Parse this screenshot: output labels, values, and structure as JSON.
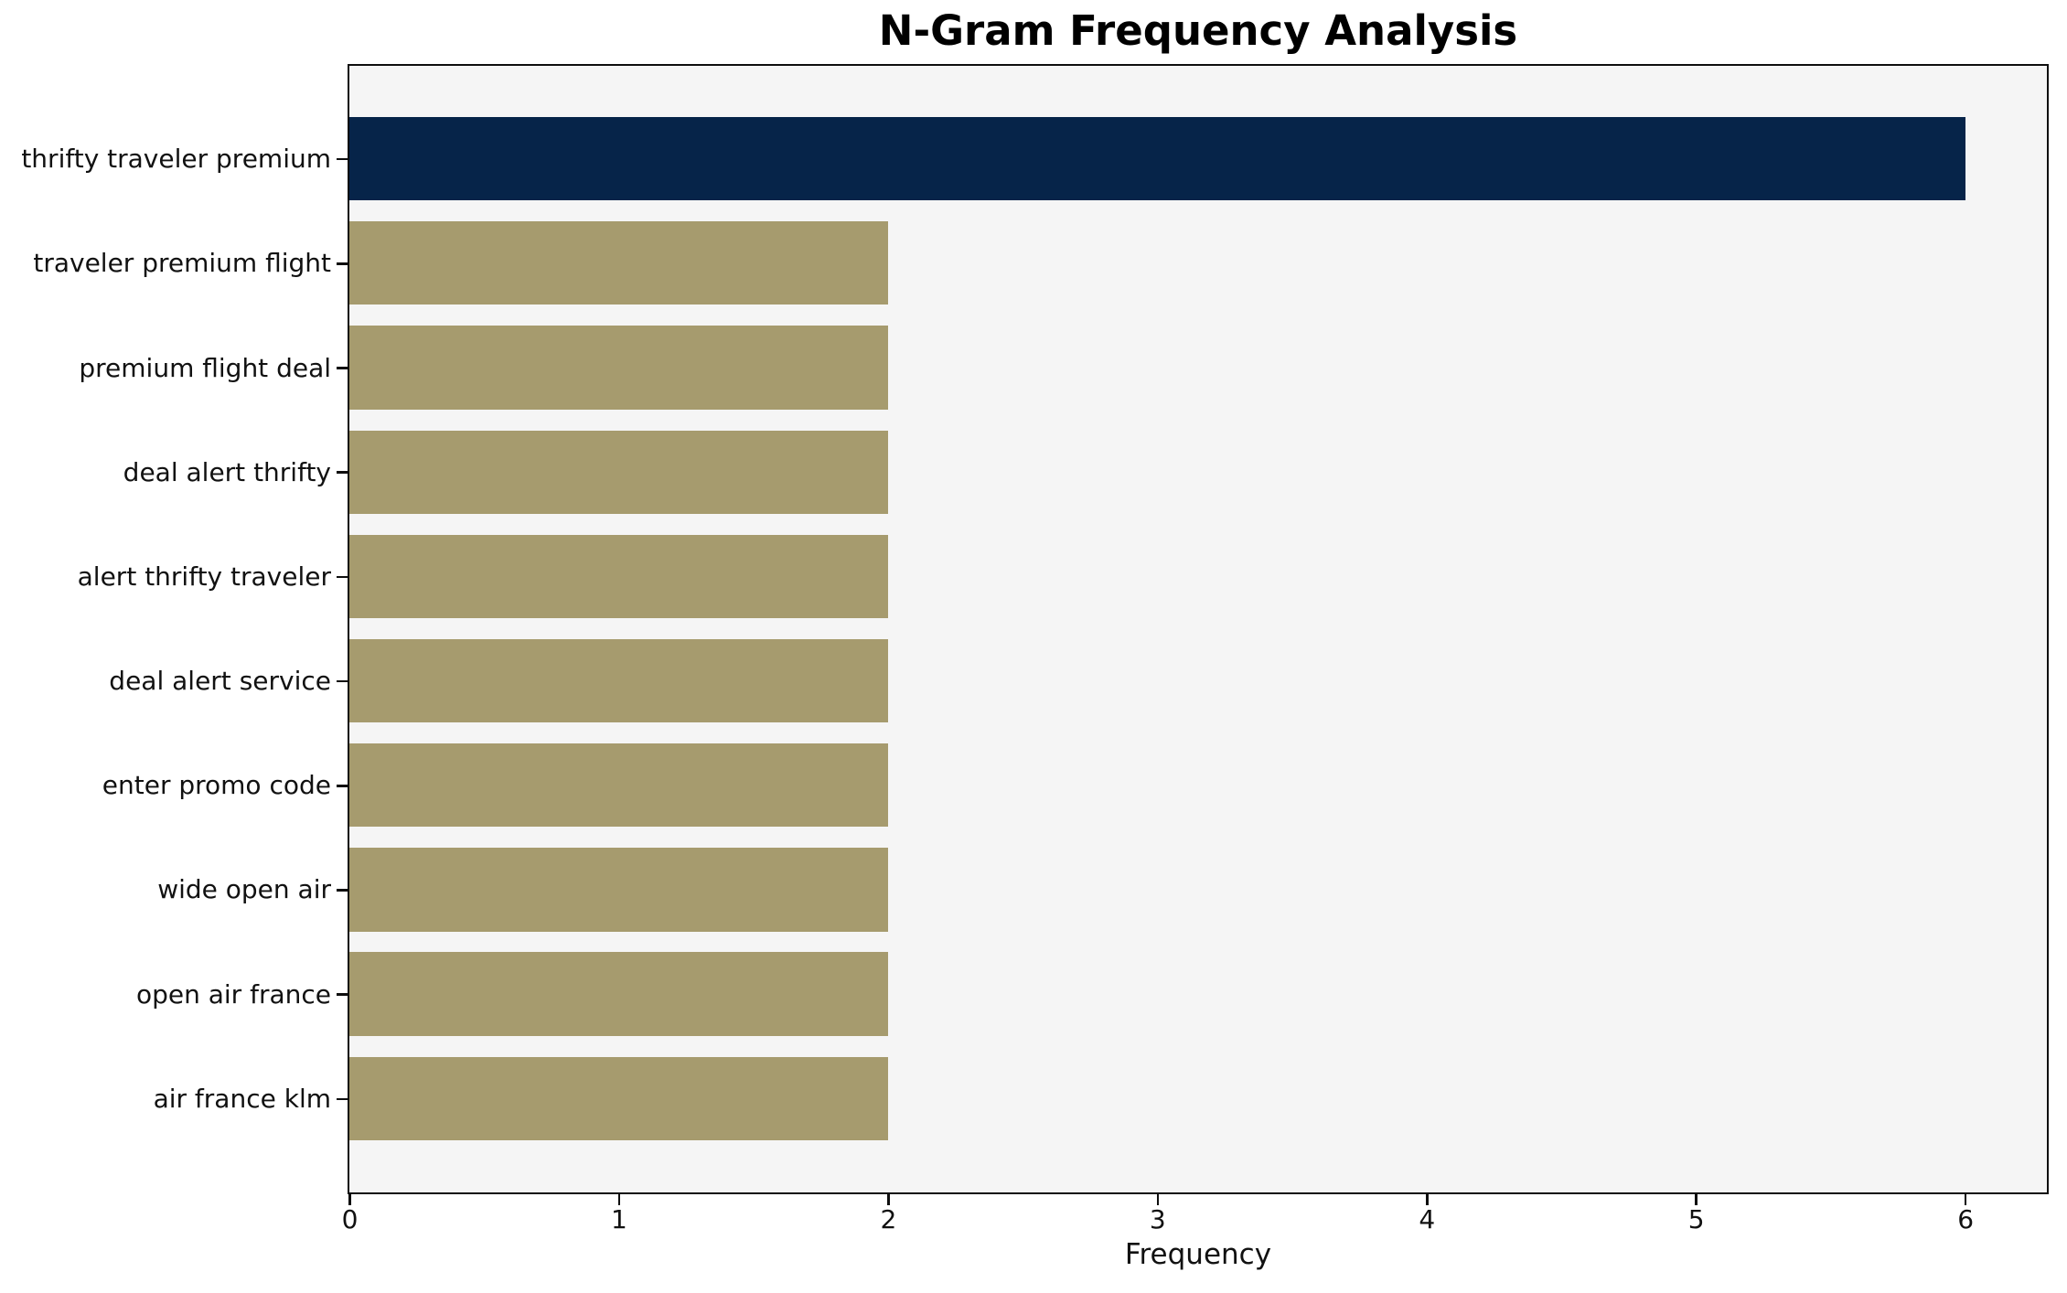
{
  "chart_data": {
    "type": "bar",
    "orientation": "horizontal",
    "title": "N-Gram Frequency Analysis",
    "xlabel": "Frequency",
    "ylabel": "",
    "categories": [
      "thrifty traveler premium",
      "traveler premium flight",
      "premium flight deal",
      "deal alert thrifty",
      "alert thrifty traveler",
      "deal alert service",
      "enter promo code",
      "wide open air",
      "open air france",
      "air france klm"
    ],
    "values": [
      6,
      2,
      2,
      2,
      2,
      2,
      2,
      2,
      2,
      2
    ],
    "x_ticks": [
      "0",
      "1",
      "2",
      "3",
      "4",
      "5",
      "6"
    ],
    "xlim": [
      0,
      6.3
    ],
    "highlight_index": 0,
    "colors": {
      "highlight_bar": "#062449",
      "default_bar": "#a69b6e",
      "plot_background": "#f5f5f5",
      "figure_background": "#ffffff",
      "spine": "#0e0e0e",
      "text": "#111111"
    },
    "legend": null,
    "grid": false
  }
}
